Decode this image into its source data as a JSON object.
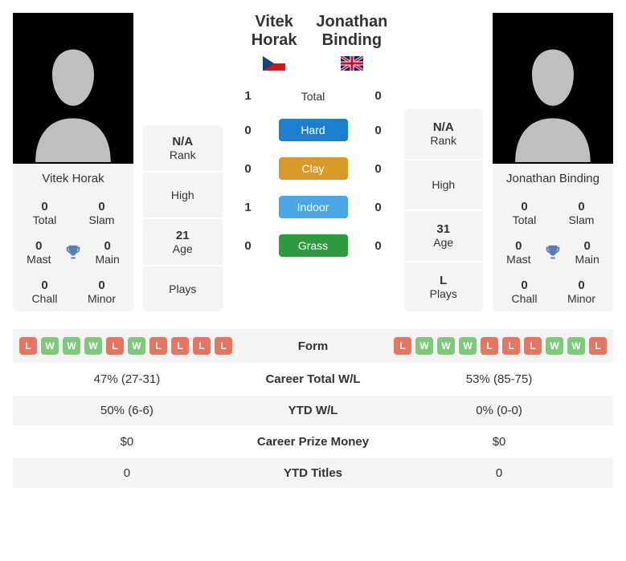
{
  "p1": {
    "name": "Vitek Horak",
    "flag": "cz",
    "photo_name": "Vitek Horak",
    "titles": {
      "total": 0,
      "slam": 0,
      "mast": 0,
      "main": 0,
      "chall": 0,
      "minor": 0
    },
    "rank": "N/A",
    "high": "",
    "age": "21",
    "plays": ""
  },
  "p2": {
    "name": "Jonathan Binding",
    "flag": "gb",
    "photo_name": "Jonathan Binding",
    "titles": {
      "total": 0,
      "slam": 0,
      "mast": 0,
      "main": 0,
      "chall": 0,
      "minor": 0
    },
    "rank": "N/A",
    "high": "",
    "age": "31",
    "plays": "L"
  },
  "labels": {
    "total": "Total",
    "slam": "Slam",
    "mast": "Mast",
    "main": "Main",
    "chall": "Chall",
    "minor": "Minor",
    "rank": "Rank",
    "high": "High",
    "age": "Age",
    "plays": "Plays"
  },
  "h2h": {
    "rows": [
      {
        "label": "Total",
        "p1": 1,
        "p2": 0,
        "type": "text"
      },
      {
        "label": "Hard",
        "p1": 0,
        "p2": 0,
        "color": "#1a7fd1"
      },
      {
        "label": "Clay",
        "p1": 0,
        "p2": 0,
        "color": "#d89a27"
      },
      {
        "label": "Indoor",
        "p1": 1,
        "p2": 0,
        "color": "#4aa8e8"
      },
      {
        "label": "Grass",
        "p1": 0,
        "p2": 0,
        "color": "#2e9b3f"
      }
    ]
  },
  "table": {
    "rows": [
      {
        "label": "Form",
        "type": "form",
        "p1": [
          "L",
          "W",
          "W",
          "W",
          "L",
          "W",
          "L",
          "L",
          "L",
          "L"
        ],
        "p2": [
          "L",
          "W",
          "W",
          "W",
          "L",
          "L",
          "L",
          "W",
          "W",
          "L"
        ]
      },
      {
        "label": "Career Total W/L",
        "p1": "47% (27-31)",
        "p2": "53% (85-75)"
      },
      {
        "label": "YTD W/L",
        "p1": "50% (6-6)",
        "p2": "0% (0-0)"
      },
      {
        "label": "Career Prize Money",
        "p1": "$0",
        "p2": "$0"
      },
      {
        "label": "YTD Titles",
        "p1": "0",
        "p2": "0"
      }
    ]
  },
  "colors": {
    "card_bg": "#f4f4f4",
    "trophy": "#5a7cb8",
    "form_W": "#7fc97f",
    "form_L": "#e57762"
  }
}
